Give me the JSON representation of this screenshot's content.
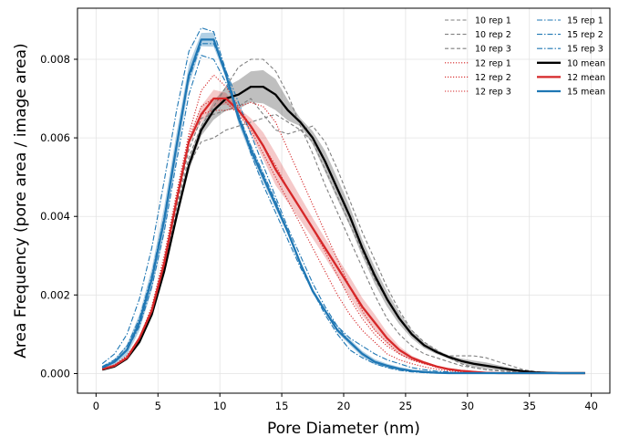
{
  "chart_data": {
    "type": "line",
    "xlabel": "Pore Diameter (nm)",
    "ylabel": "Area Frequency (pore area / image area)",
    "xlim": [
      -1.5,
      41.5
    ],
    "ylim": [
      -0.0005,
      0.0093
    ],
    "x_ticks": [
      0,
      5,
      10,
      15,
      20,
      25,
      30,
      35,
      40
    ],
    "y_ticks": [
      0.0,
      0.002,
      0.004,
      0.006,
      0.008
    ],
    "x_tick_labels": [
      "0",
      "5",
      "10",
      "15",
      "20",
      "25",
      "30",
      "35",
      "40"
    ],
    "y_tick_labels": [
      "0.000",
      "0.002",
      "0.004",
      "0.006",
      "0.008"
    ],
    "grid": true,
    "legend_position": "top-right",
    "legend_columns": 2,
    "x": [
      0.5,
      1.5,
      2.5,
      3.5,
      4.5,
      5.5,
      6.5,
      7.5,
      8.5,
      9.5,
      10.5,
      11.5,
      12.5,
      13.5,
      14.5,
      15.5,
      16.5,
      17.5,
      18.5,
      19.5,
      20.5,
      21.5,
      22.5,
      23.5,
      24.5,
      25.5,
      26.5,
      27.5,
      28.5,
      29.5,
      30.5,
      31.5,
      32.5,
      33.5,
      34.5,
      35.5,
      36.5,
      37.5,
      38.5,
      39.5
    ],
    "series": [
      {
        "name": "10 rep 1",
        "color": "#7f7f7f",
        "style": "dashed",
        "width": 1.1,
        "values": [
          0.00012,
          0.0002,
          0.0004,
          0.0008,
          0.0015,
          0.0026,
          0.004,
          0.0053,
          0.0059,
          0.006,
          0.0062,
          0.0063,
          0.0064,
          0.0065,
          0.0066,
          0.0064,
          0.0062,
          0.0059,
          0.0052,
          0.0045,
          0.0038,
          0.0031,
          0.0024,
          0.0019,
          0.0014,
          0.001,
          0.0007,
          0.00055,
          0.00045,
          0.00045,
          0.00045,
          0.0004,
          0.0003,
          0.0002,
          0.0001,
          5e-05,
          3e-05,
          2e-05,
          1e-05,
          1e-05
        ]
      },
      {
        "name": "10 rep 2",
        "color": "#7f7f7f",
        "style": "dashed",
        "width": 1.1,
        "values": [
          0.00012,
          0.0002,
          0.0004,
          0.0008,
          0.0015,
          0.0027,
          0.0042,
          0.0055,
          0.0063,
          0.0068,
          0.0073,
          0.0078,
          0.008,
          0.008,
          0.0077,
          0.0071,
          0.0063,
          0.0056,
          0.0048,
          0.0041,
          0.0034,
          0.0027,
          0.002,
          0.0014,
          0.001,
          0.0007,
          0.0005,
          0.0004,
          0.0003,
          0.0002,
          0.00015,
          0.0001,
          8e-05,
          5e-05,
          3e-05,
          2e-05,
          1e-05,
          1e-05,
          1e-05,
          1e-05
        ]
      },
      {
        "name": "10 rep 3",
        "color": "#7f7f7f",
        "style": "dashed",
        "width": 1.1,
        "values": [
          0.00012,
          0.0002,
          0.0004,
          0.0009,
          0.0016,
          0.0028,
          0.0043,
          0.0057,
          0.0065,
          0.0066,
          0.0067,
          0.0068,
          0.007,
          0.0066,
          0.0062,
          0.0061,
          0.0062,
          0.0063,
          0.0059,
          0.0052,
          0.0044,
          0.0036,
          0.0029,
          0.0022,
          0.0016,
          0.0011,
          0.0008,
          0.0006,
          0.0004,
          0.00025,
          0.00015,
          0.0001,
          7e-05,
          5e-05,
          3e-05,
          2e-05,
          1e-05,
          1e-05,
          1e-05,
          1e-05
        ]
      },
      {
        "name": "12 rep 1",
        "color": "#d62728",
        "style": "dotted",
        "width": 1.1,
        "values": [
          0.00012,
          0.00022,
          0.00045,
          0.0009,
          0.0017,
          0.003,
          0.0046,
          0.0061,
          0.0072,
          0.0076,
          0.0073,
          0.0068,
          0.0063,
          0.0058,
          0.0053,
          0.0047,
          0.0042,
          0.0037,
          0.0031,
          0.0025,
          0.0019,
          0.0014,
          0.001,
          0.0007,
          0.0005,
          0.00035,
          0.00025,
          0.00018,
          0.00012,
          8e-05,
          5e-05,
          3e-05,
          2e-05,
          1e-05,
          1e-05,
          1e-05,
          1e-05,
          1e-05,
          1e-05,
          1e-05
        ]
      },
      {
        "name": "12 rep 2",
        "color": "#d62728",
        "style": "dotted",
        "width": 1.1,
        "values": [
          0.00012,
          0.00022,
          0.00045,
          0.0009,
          0.0016,
          0.0028,
          0.0044,
          0.0059,
          0.0066,
          0.0067,
          0.0067,
          0.0068,
          0.0069,
          0.0068,
          0.0064,
          0.0057,
          0.005,
          0.0043,
          0.0036,
          0.0029,
          0.0022,
          0.0016,
          0.0011,
          0.0008,
          0.0005,
          0.00035,
          0.00025,
          0.00016,
          0.0001,
          6e-05,
          4e-05,
          2e-05,
          1e-05,
          1e-05,
          1e-05,
          1e-05,
          1e-05,
          1e-05,
          1e-05,
          1e-05
        ]
      },
      {
        "name": "12 rep 3",
        "color": "#d62728",
        "style": "dotted",
        "width": 1.1,
        "values": [
          0.00012,
          0.00022,
          0.00045,
          0.0009,
          0.0017,
          0.0029,
          0.0045,
          0.006,
          0.0068,
          0.007,
          0.0069,
          0.0066,
          0.0062,
          0.0056,
          0.005,
          0.0044,
          0.0038,
          0.0032,
          0.0026,
          0.002,
          0.0015,
          0.0011,
          0.0008,
          0.0005,
          0.00035,
          0.00025,
          0.00017,
          0.00011,
          7e-05,
          4e-05,
          2e-05,
          1e-05,
          1e-05,
          1e-05,
          1e-05,
          1e-05,
          1e-05,
          1e-05,
          1e-05,
          1e-05
        ]
      },
      {
        "name": "15 rep 1",
        "color": "#1f77b4",
        "style": "dashdot",
        "width": 1.1,
        "values": [
          0.00025,
          0.0005,
          0.001,
          0.0019,
          0.0032,
          0.0049,
          0.0067,
          0.0082,
          0.0088,
          0.0087,
          0.0077,
          0.0066,
          0.0056,
          0.0048,
          0.0041,
          0.0034,
          0.0027,
          0.0021,
          0.0016,
          0.0012,
          0.0009,
          0.0007,
          0.0005,
          0.00035,
          0.00025,
          0.00015,
          0.0001,
          6e-05,
          4e-05,
          2e-05,
          1e-05,
          1e-05,
          1e-05,
          1e-05,
          1e-05,
          1e-05,
          1e-05,
          1e-05,
          1e-05,
          1e-05
        ]
      },
      {
        "name": "15 rep 2",
        "color": "#1f77b4",
        "style": "dashdot",
        "width": 1.1,
        "values": [
          0.00018,
          0.00035,
          0.0007,
          0.0014,
          0.0025,
          0.004,
          0.0058,
          0.0075,
          0.0084,
          0.0084,
          0.0077,
          0.0069,
          0.0061,
          0.0053,
          0.0045,
          0.0037,
          0.003,
          0.0023,
          0.0017,
          0.0012,
          0.0008,
          0.0005,
          0.0003,
          0.00018,
          0.0001,
          6e-05,
          3e-05,
          2e-05,
          1e-05,
          1e-05,
          1e-05,
          1e-05,
          1e-05,
          1e-05,
          1e-05,
          1e-05,
          1e-05,
          1e-05,
          1e-05,
          1e-05
        ]
      },
      {
        "name": "15 rep 3",
        "color": "#1f77b4",
        "style": "dashdot",
        "width": 1.1,
        "values": [
          0.00015,
          0.0003,
          0.0006,
          0.0012,
          0.0022,
          0.0036,
          0.0054,
          0.0071,
          0.0081,
          0.008,
          0.0074,
          0.0066,
          0.0058,
          0.0051,
          0.0044,
          0.0036,
          0.0028,
          0.0021,
          0.0015,
          0.001,
          0.0006,
          0.0004,
          0.00025,
          0.00015,
          8e-05,
          4e-05,
          2e-05,
          1e-05,
          1e-05,
          1e-05,
          1e-05,
          1e-05,
          1e-05,
          1e-05,
          1e-05,
          1e-05,
          1e-05,
          1e-05,
          1e-05,
          1e-05
        ]
      },
      {
        "name": "10 mean",
        "color": "#000000",
        "style": "solid",
        "width": 2.3,
        "values": [
          0.0001,
          0.00018,
          0.00038,
          0.0008,
          0.0015,
          0.0026,
          0.004,
          0.0053,
          0.0062,
          0.0067,
          0.007,
          0.0071,
          0.0073,
          0.0073,
          0.0071,
          0.0067,
          0.0064,
          0.006,
          0.0054,
          0.0047,
          0.004,
          0.0032,
          0.0025,
          0.0019,
          0.0014,
          0.001,
          0.00072,
          0.00055,
          0.00042,
          0.00032,
          0.00025,
          0.0002,
          0.00015,
          0.0001,
          6e-05,
          3e-05,
          2e-05,
          1e-05,
          1e-05,
          1e-05
        ]
      },
      {
        "name": "12 mean",
        "color": "#d62728",
        "style": "solid",
        "width": 2.3,
        "values": [
          0.00011,
          0.0002,
          0.0004,
          0.0009,
          0.0016,
          0.0028,
          0.0044,
          0.0059,
          0.0066,
          0.007,
          0.007,
          0.0067,
          0.0063,
          0.0058,
          0.0052,
          0.0047,
          0.0042,
          0.0037,
          0.0032,
          0.0027,
          0.0022,
          0.0017,
          0.0013,
          0.0009,
          0.0006,
          0.0004,
          0.00028,
          0.00018,
          0.00011,
          7e-05,
          4e-05,
          2e-05,
          1e-05,
          1e-05,
          1e-05,
          1e-05,
          1e-05,
          1e-05,
          1e-05,
          1e-05
        ]
      },
      {
        "name": "15 mean",
        "color": "#1f77b4",
        "style": "solid",
        "width": 2.3,
        "values": [
          0.00015,
          0.0003,
          0.0006,
          0.0013,
          0.0024,
          0.0039,
          0.0058,
          0.0076,
          0.0085,
          0.0085,
          0.0076,
          0.0065,
          0.0057,
          0.005,
          0.0043,
          0.0036,
          0.0028,
          0.0021,
          0.0016,
          0.0011,
          0.0008,
          0.0005,
          0.0003,
          0.0002,
          0.00012,
          7e-05,
          4e-05,
          2e-05,
          1e-05,
          1e-05,
          1e-05,
          1e-05,
          1e-05,
          1e-05,
          1e-05,
          1e-05,
          1e-05,
          1e-05,
          1e-05,
          1e-05
        ]
      }
    ],
    "bands": [
      {
        "of": "10 mean",
        "color": "#000000",
        "opacity": 0.25
      },
      {
        "of": "12 mean",
        "color": "#d62728",
        "opacity": 0.25
      },
      {
        "of": "15 mean",
        "color": "#1f77b4",
        "opacity": 0.35
      }
    ]
  }
}
